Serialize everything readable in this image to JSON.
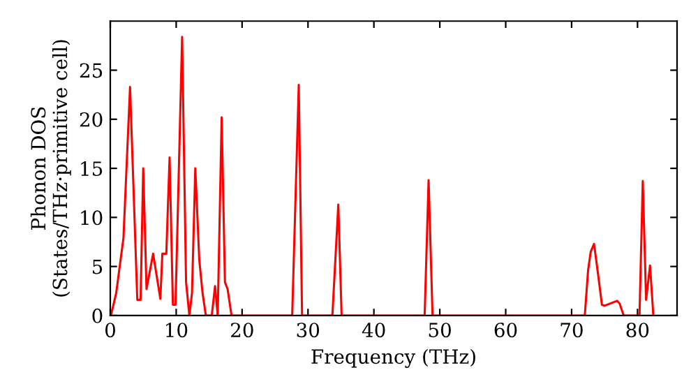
{
  "chart_data": {
    "type": "line",
    "xlabel": "Frequency (THz)",
    "ylabel": "Phonon DOS\n(States/THz·primitive cell)",
    "series": [
      {
        "color": "#ff0000",
        "x": [
          0,
          0.1,
          0.9,
          2.0,
          3.0,
          4.1,
          4.6,
          5.0,
          5.5,
          6.5,
          7.6,
          7.9,
          8.5,
          9.0,
          9.5,
          9.9,
          10.9,
          11.5,
          12.0,
          12.4,
          12.9,
          13.5,
          14.0,
          14.5,
          15.4,
          15.9,
          16.3,
          16.9,
          17.4,
          17.8,
          18.4,
          27.6,
          28.6,
          29.1,
          33.7,
          34.6,
          35.1,
          47.7,
          48.3,
          48.9,
          72.0,
          72.5,
          72.9,
          73.4,
          74.0,
          74.6,
          75.0,
          76.9,
          77.3,
          77.9,
          80.3,
          80.8,
          81.3,
          81.9,
          82.4
        ],
        "values": [
          0,
          0,
          2.3,
          7.9,
          23.3,
          1.6,
          1.6,
          15,
          2.7,
          6.3,
          1.7,
          6.3,
          6.3,
          16.1,
          1.1,
          1.1,
          28.4,
          3.4,
          0,
          2.3,
          15,
          5.7,
          2.3,
          0,
          0,
          3.0,
          0,
          20.2,
          3.4,
          2.7,
          0,
          0,
          23.5,
          0,
          0,
          11.3,
          0,
          0,
          13.8,
          0,
          0,
          4.6,
          6.5,
          7.3,
          4.3,
          1.1,
          1.0,
          1.5,
          1.2,
          0,
          0,
          13.7,
          1.6,
          5.1,
          0
        ]
      }
    ],
    "xlim": [
      0,
      86
    ],
    "ylim": [
      0,
      30
    ],
    "xticks": [
      0,
      10,
      20,
      30,
      40,
      50,
      60,
      70,
      80
    ],
    "yticks": [
      0,
      5,
      10,
      15,
      20,
      25
    ],
    "grid": false,
    "legend": false,
    "marker": "none",
    "line_style": "solid"
  }
}
